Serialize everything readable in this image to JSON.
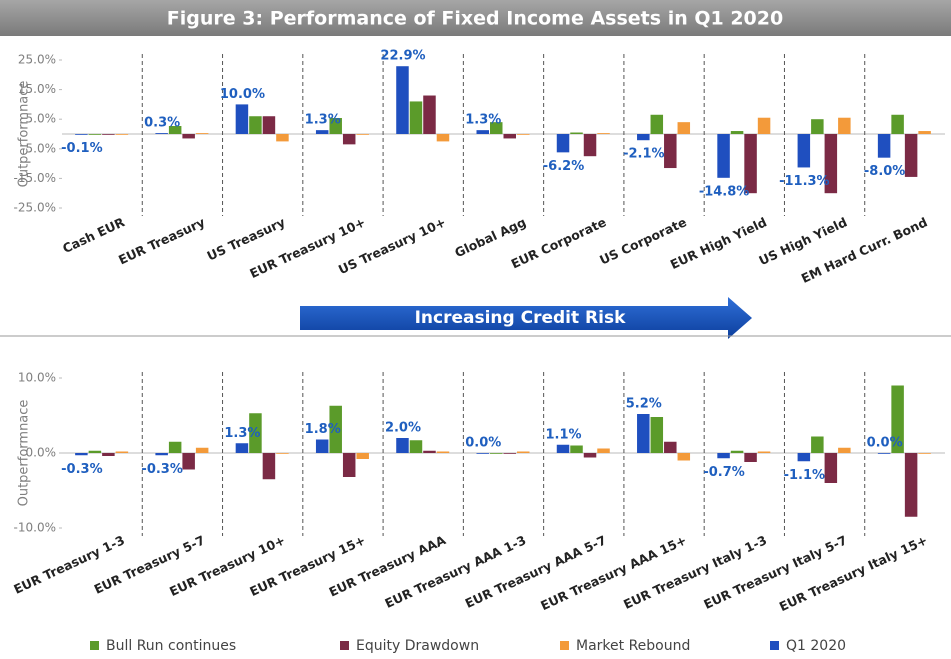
{
  "chart_data": [
    {
      "type": "bar",
      "title": "Figure 3: Performance of Fixed Income Assets in Q1 2020",
      "y_label": "Outperformnace",
      "annotation": "Increasing Credit Risk",
      "categories": [
        "Cash EUR",
        "EUR Treasury",
        "US Treasury",
        "EUR Treasury 10+",
        "US Treasury 10+",
        "Global Agg",
        "EUR Corporate",
        "US Corporate",
        "EUR High Yield",
        "US High Yield",
        "EM Hard Curr. Bond"
      ],
      "ylim": [
        -25,
        25
      ],
      "yticks": [
        {
          "value": 25,
          "label": "25.0%"
        },
        {
          "value": 15,
          "label": "15.0%"
        },
        {
          "value": 5,
          "label": "5.0%"
        },
        {
          "value": -5,
          "label": "-5.0%"
        },
        {
          "value": -15,
          "label": "-15.0%"
        },
        {
          "value": -25,
          "label": "-25.0%"
        }
      ],
      "series": [
        {
          "color": "#5b9b2a",
          "values": [
            0,
            2.7,
            6,
            5.4,
            11,
            4,
            0.5,
            6.5,
            1,
            5,
            6.5
          ]
        },
        {
          "color": "#7b2a45",
          "values": [
            0,
            -1.5,
            6,
            -3.5,
            13,
            -1.5,
            -7.5,
            -11.5,
            -20,
            -20,
            -14.5
          ]
        },
        {
          "color": "#f39a3a",
          "values": [
            0,
            0.3,
            -2.5,
            0,
            -2.5,
            0,
            0.3,
            4,
            5.5,
            5.5,
            1
          ]
        },
        {
          "color": "#1f4fbf",
          "values": [
            -0.1,
            0.3,
            10.0,
            1.3,
            22.9,
            1.3,
            -6.2,
            -2.1,
            -14.8,
            -11.3,
            -8.0
          ],
          "value_labels": [
            "-0.1%",
            "0.3%",
            "10.0%",
            "1.3%",
            "22.9%",
            "1.3%",
            "-6.2%",
            "-2.1%",
            "-14.8%",
            "-11.3%",
            "-8.0%"
          ]
        }
      ]
    },
    {
      "type": "bar",
      "y_label": "Outperformnace",
      "categories": [
        "EUR Treasury 1-3",
        "EUR Treasury 5-7",
        "EUR Treasury 10+",
        "EUR Treasury 15+",
        "EUR Treasury AAA",
        "EUR Treasury AAA 1-3",
        "EUR Treasury AAA 5-7",
        "EUR Treasury AAA 15+",
        "EUR Treasury Italy 1-3",
        "EUR Treasury Italy 5-7",
        "EUR Treasury Italy 15+"
      ],
      "ylim": [
        -10,
        10
      ],
      "yticks": [
        {
          "value": 10,
          "label": "10.0%"
        },
        {
          "value": 0,
          "label": "0.0%"
        },
        {
          "value": -10,
          "label": "-10.0%"
        }
      ],
      "series": [
        {
          "name": "Bull Run continues",
          "color": "#5b9b2a",
          "values": [
            0.3,
            1.5,
            5.3,
            6.3,
            1.7,
            0,
            1,
            4.8,
            0.3,
            2.2,
            9
          ]
        },
        {
          "name": "Equity Drawdown",
          "color": "#7b2a45",
          "values": [
            -0.4,
            -2.2,
            -3.5,
            -3.2,
            0.3,
            0,
            -0.6,
            1.5,
            -1.2,
            -4,
            -8.5
          ]
        },
        {
          "name": "Market Rebound",
          "color": "#f39a3a",
          "values": [
            0.2,
            0.7,
            0,
            -0.8,
            0.2,
            0.2,
            0.6,
            -1,
            0.2,
            0.7,
            0
          ]
        },
        {
          "name": "Q1 2020",
          "color": "#1f4fbf",
          "values": [
            -0.3,
            -0.3,
            1.3,
            1.8,
            2.0,
            0.0,
            1.1,
            5.2,
            -0.7,
            -1.1,
            0.0
          ],
          "value_labels": [
            "-0.3%",
            "-0.3%",
            "1.3%",
            "1.8%",
            "2.0%",
            "0.0%",
            "1.1%",
            "5.2%",
            "-0.7%",
            "-1.1%",
            "0.0%"
          ]
        }
      ]
    }
  ]
}
